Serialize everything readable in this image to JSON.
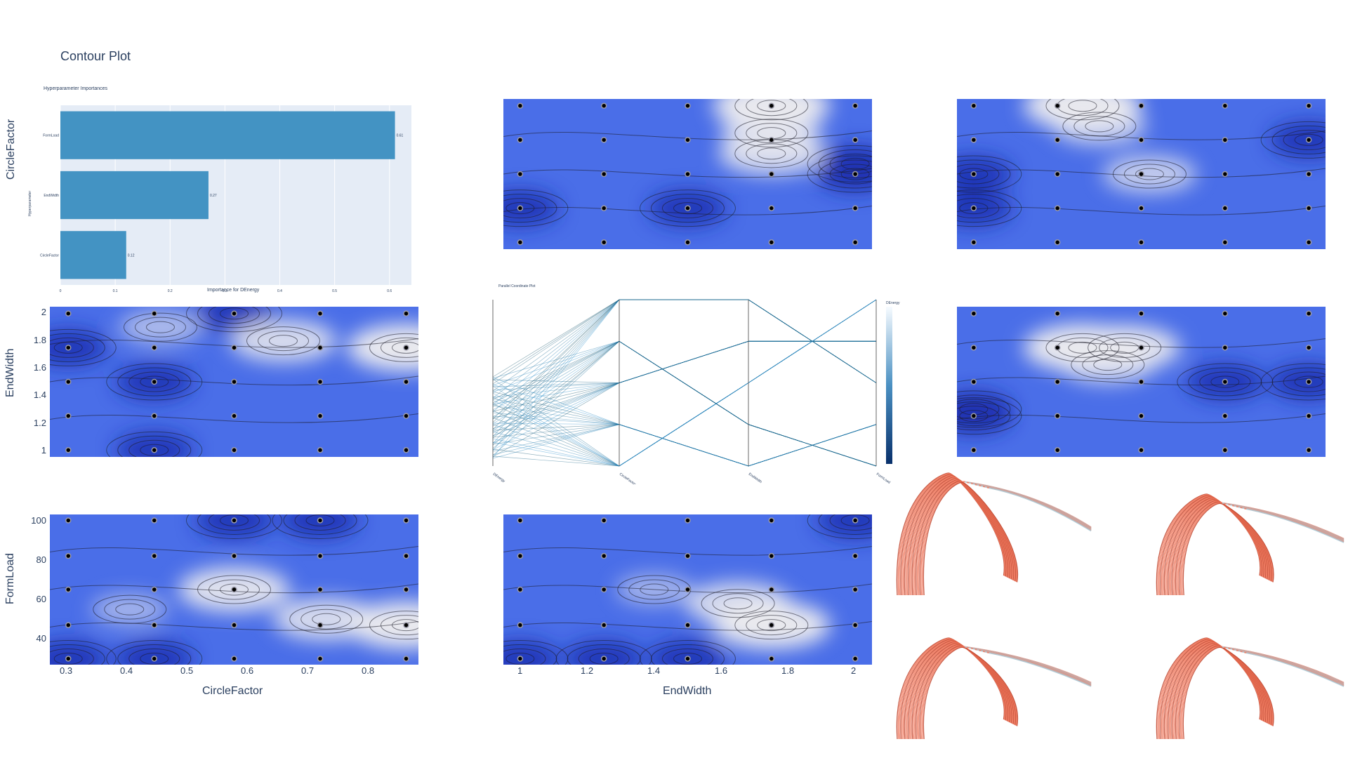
{
  "page": {
    "title": "Contour Plot"
  },
  "importance": {
    "title": "Hyperparameter Importances",
    "xlabel": "Importance for DEnergy",
    "ylabel": "Hyperparameter",
    "xticks": [
      "0",
      "0.1",
      "0.2",
      "0.3",
      "0.4",
      "0.5",
      "0.6"
    ],
    "xlim": [
      0,
      0.64
    ]
  },
  "axes": {
    "row_labels": [
      "CircleFactor",
      "EndWidth",
      "FormLoad"
    ],
    "col_labels": [
      "CircleFactor",
      "EndWidth"
    ],
    "endwidth_ticks": [
      "2",
      "1.8",
      "1.6",
      "1.4",
      "1.2",
      "1"
    ],
    "formload_ticks": [
      "100",
      "80",
      "60",
      "40"
    ],
    "circlefactor_ticks": [
      "0.3",
      "0.4",
      "0.5",
      "0.6",
      "0.7",
      "0.8"
    ],
    "endwidth_x_ticks": [
      "1",
      "1.2",
      "1.4",
      "1.6",
      "1.8",
      "2"
    ]
  },
  "parallel": {
    "title": "Parallel Coordinate Plot",
    "colorbar_label": "DEnergy",
    "dim_labels": [
      "DEnergy",
      "CircleFactor",
      "EndWidth",
      "FormLoad"
    ]
  },
  "colors": {
    "bar": "#4393c3",
    "plot_bg": "#e5ecf6",
    "contour_low": "#1a2fb0",
    "contour_mid": "#4a6ee8",
    "contour_high": "#e9e9ee",
    "arch": "#f0765a",
    "arch_top": "#a9d3e3"
  },
  "chart_data": [
    {
      "type": "bar",
      "orientation": "horizontal",
      "title": "Hyperparameter Importances",
      "xlabel": "Importance for DEnergy",
      "ylabel": "Hyperparameter",
      "categories": [
        "FormLoad",
        "EndWidth",
        "CircleFactor"
      ],
      "values": [
        0.61,
        0.27,
        0.12
      ],
      "value_labels": [
        "0.61",
        "0.27",
        "0.12"
      ],
      "xlim": [
        0,
        0.64
      ]
    },
    {
      "type": "heatmap",
      "x_param": "CircleFactor",
      "y_param": "EndWidth",
      "xlim": [
        0.27,
        0.87
      ],
      "ylim": [
        0.95,
        2.05
      ],
      "x": [
        0.3,
        0.44,
        0.57,
        0.71,
        0.85
      ],
      "y": [
        1,
        1.25,
        1.5,
        1.75,
        2
      ],
      "hotspots": [
        [
          0.85,
          1.75,
          1.0
        ],
        [
          0.65,
          1.8,
          0.8
        ],
        [
          0.45,
          1.9,
          0.4
        ]
      ],
      "coldspots": [
        [
          0.44,
          1.5
        ],
        [
          0.44,
          1.0
        ],
        [
          0.3,
          1.75
        ],
        [
          0.57,
          2.0
        ]
      ]
    },
    {
      "type": "heatmap",
      "x_param": "CircleFactor",
      "y_param": "FormLoad",
      "xlim": [
        0.27,
        0.87
      ],
      "ylim": [
        27,
        103
      ],
      "x": [
        0.3,
        0.44,
        0.57,
        0.71,
        0.85
      ],
      "y": [
        30,
        47,
        65,
        82,
        100
      ],
      "hotspots": [
        [
          0.85,
          47,
          1.0
        ],
        [
          0.72,
          50,
          0.8
        ],
        [
          0.57,
          65,
          0.9
        ],
        [
          0.4,
          55,
          0.3
        ]
      ],
      "coldspots": [
        [
          0.44,
          30
        ],
        [
          0.3,
          30
        ],
        [
          0.71,
          100
        ],
        [
          0.57,
          100
        ]
      ]
    },
    {
      "type": "heatmap",
      "x_param": "EndWidth",
      "y_param": "FormLoad",
      "xlim": [
        0.95,
        2.05
      ],
      "ylim": [
        27,
        103
      ],
      "x": [
        1,
        1.25,
        1.5,
        1.75,
        2
      ],
      "y": [
        30,
        47,
        65,
        82,
        100
      ],
      "hotspots": [
        [
          1.75,
          47,
          1.0
        ],
        [
          1.65,
          58,
          0.8
        ],
        [
          1.4,
          65,
          0.3
        ]
      ],
      "coldspots": [
        [
          1.25,
          30
        ],
        [
          1.5,
          30
        ],
        [
          2.0,
          100
        ],
        [
          1.0,
          30
        ]
      ]
    },
    {
      "type": "heatmap",
      "x_param": "CircleFactor",
      "y_param": "CircleFactor",
      "x": [
        1,
        2,
        3,
        4,
        5
      ],
      "y": [
        1,
        2,
        3,
        4,
        5
      ],
      "hotspots": [
        [
          4,
          5,
          1.0
        ],
        [
          4,
          3.6,
          0.8
        ],
        [
          4,
          4.2,
          0.7
        ]
      ],
      "coldspots": [
        [
          1,
          2
        ],
        [
          3,
          2
        ],
        [
          5,
          3
        ],
        [
          5,
          3.3
        ]
      ]
    },
    {
      "type": "heatmap",
      "x_param": "EndWidth",
      "y_param": "CircleFactor",
      "x": [
        1,
        2,
        3,
        4,
        5
      ],
      "y": [
        1,
        2,
        3,
        4,
        5
      ],
      "hotspots": [
        [
          2.3,
          5,
          1.0
        ],
        [
          2.5,
          4.4,
          0.6
        ],
        [
          3.1,
          3,
          0.6
        ]
      ],
      "coldspots": [
        [
          1,
          2
        ],
        [
          5,
          4
        ],
        [
          1,
          3
        ]
      ]
    },
    {
      "type": "heatmap",
      "x_param": "EndWidth",
      "y_param": "EndWidth",
      "x": [
        1,
        2,
        3,
        4,
        5
      ],
      "y": [
        1,
        2,
        3,
        4,
        5
      ],
      "hotspots": [
        [
          2.3,
          4,
          1.0
        ],
        [
          2.8,
          4.0,
          0.9
        ],
        [
          2.6,
          3.5,
          0.6
        ]
      ],
      "coldspots": [
        [
          1,
          2
        ],
        [
          1,
          2.2
        ],
        [
          4,
          3
        ],
        [
          5,
          3
        ]
      ]
    }
  ]
}
